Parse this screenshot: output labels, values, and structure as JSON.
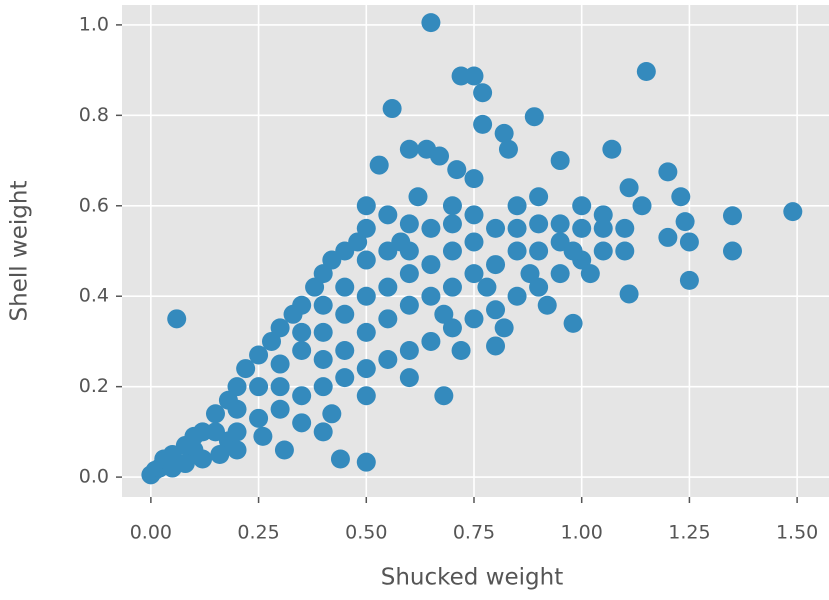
{
  "chart_data": {
    "type": "scatter",
    "x_label": "Shucked weight",
    "y_label": "Shell weight",
    "color": "#348abd",
    "grid": true,
    "xlim": [
      -0.067,
      1.574
    ],
    "ylim": [
      -0.044,
      1.044
    ],
    "xticks": [
      {
        "value": 0,
        "label": "0.00"
      },
      {
        "value": 0.25,
        "label": "0.25"
      },
      {
        "value": 0.5,
        "label": "0.50"
      },
      {
        "value": 0.75,
        "label": "0.75"
      },
      {
        "value": 1,
        "label": "1.00"
      },
      {
        "value": 1.25,
        "label": "1.25"
      },
      {
        "value": 1.5,
        "label": "1.50"
      }
    ],
    "yticks": [
      {
        "value": 0,
        "label": "0.0"
      },
      {
        "value": 0.2,
        "label": "0.2"
      },
      {
        "value": 0.4,
        "label": "0.4"
      },
      {
        "value": 0.6,
        "label": "0.6"
      },
      {
        "value": 0.8,
        "label": "0.8"
      },
      {
        "value": 1,
        "label": "1.0"
      }
    ],
    "x": [
      0.65,
      1.15,
      0.72,
      0.75,
      0.77,
      0.56,
      0.89,
      0.77,
      0.82,
      0.6,
      0.64,
      1.07,
      0.83,
      0.95,
      0.53,
      0.67,
      1.2,
      1.23,
      1.35,
      1.49,
      1.35,
      1.25,
      1.25,
      1.11,
      0.98,
      0.06,
      0.31,
      0.44,
      0.5,
      0.4,
      0.8,
      0.68,
      1.24,
      1.11,
      1.14,
      1.2,
      1.05,
      0.9,
      0.75,
      0.71,
      0,
      0.01,
      0.02,
      0.03,
      0.05,
      0.08,
      0.1,
      0.12,
      0.15,
      0.18,
      0.2,
      0.22,
      0.25,
      0.28,
      0.3,
      0.33,
      0.35,
      0.38,
      0.4,
      0.42,
      0.45,
      0.48,
      0.5,
      0.55,
      0.6,
      0.2,
      0.25,
      0.3,
      0.35,
      0.4,
      0.45,
      0.5,
      0.55,
      0.6,
      0.65,
      0.7,
      0.75,
      0.8,
      0.85,
      0.9,
      0.95,
      1.0,
      1.05,
      1.1,
      0.3,
      0.35,
      0.4,
      0.45,
      0.5,
      0.55,
      0.6,
      0.65,
      0.7,
      0.75,
      0.8,
      0.85,
      0.9,
      0.95,
      1.0,
      0.5,
      0.6,
      0.7,
      0.8,
      0.9,
      0.4,
      0.5,
      0.6,
      0.7,
      0.65,
      0.75,
      0.85,
      0.2,
      0.15,
      0.1,
      0.25,
      0.35,
      0.45,
      0.55,
      0.45,
      0.55,
      0.65,
      0.75,
      0.85,
      0.95,
      1.05,
      0.12,
      0.18,
      0.3,
      0.4,
      0.7,
      0.62,
      0.5,
      0.58,
      0.68,
      0.78,
      0.88,
      0.98,
      1.0,
      1.1,
      1.02,
      0.92,
      0.82,
      0.72,
      0.6,
      0.5,
      0.42,
      0.35,
      0.26,
      0.2,
      0.16,
      0.08,
      0.05
    ],
    "values": [
      1.005,
      0.897,
      0.887,
      0.887,
      0.85,
      0.815,
      0.797,
      0.78,
      0.76,
      0.725,
      0.725,
      0.725,
      0.725,
      0.7,
      0.69,
      0.71,
      0.675,
      0.62,
      0.578,
      0.587,
      0.5,
      0.52,
      0.435,
      0.405,
      0.34,
      0.35,
      0.06,
      0.04,
      0.033,
      0.1,
      0.29,
      0.18,
      0.565,
      0.64,
      0.6,
      0.53,
      0.58,
      0.62,
      0.66,
      0.68,
      0.005,
      0.015,
      0.02,
      0.04,
      0.05,
      0.07,
      0.09,
      0.1,
      0.14,
      0.17,
      0.2,
      0.24,
      0.27,
      0.3,
      0.33,
      0.36,
      0.38,
      0.42,
      0.45,
      0.48,
      0.5,
      0.52,
      0.55,
      0.58,
      0.56,
      0.1,
      0.13,
      0.15,
      0.18,
      0.2,
      0.22,
      0.24,
      0.26,
      0.28,
      0.3,
      0.33,
      0.35,
      0.37,
      0.4,
      0.42,
      0.45,
      0.48,
      0.5,
      0.5,
      0.25,
      0.28,
      0.32,
      0.36,
      0.4,
      0.42,
      0.45,
      0.47,
      0.5,
      0.52,
      0.55,
      0.55,
      0.56,
      0.56,
      0.55,
      0.32,
      0.38,
      0.42,
      0.47,
      0.5,
      0.38,
      0.48,
      0.5,
      0.56,
      0.55,
      0.58,
      0.6,
      0.15,
      0.1,
      0.06,
      0.2,
      0.32,
      0.42,
      0.5,
      0.28,
      0.35,
      0.4,
      0.45,
      0.5,
      0.52,
      0.55,
      0.04,
      0.08,
      0.2,
      0.26,
      0.6,
      0.62,
      0.6,
      0.52,
      0.36,
      0.42,
      0.45,
      0.5,
      0.6,
      0.55,
      0.45,
      0.38,
      0.33,
      0.28,
      0.22,
      0.18,
      0.14,
      0.12,
      0.09,
      0.06,
      0.05,
      0.03,
      0.02
    ]
  }
}
